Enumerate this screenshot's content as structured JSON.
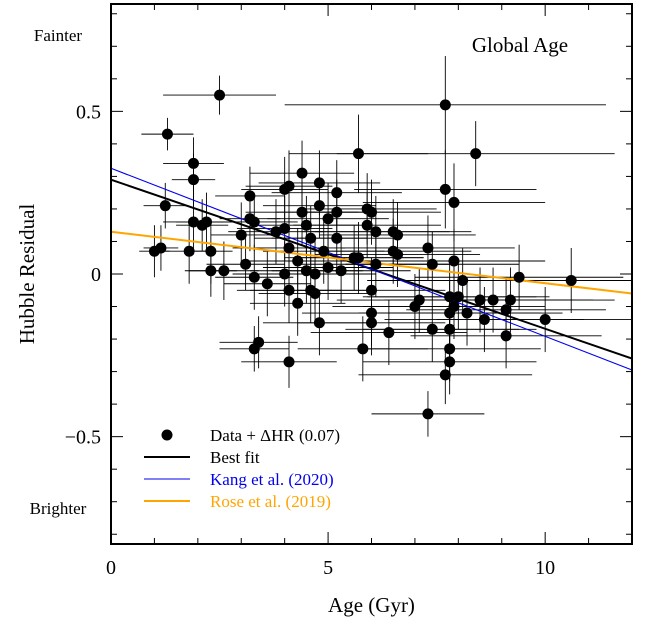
{
  "chart_data": {
    "type": "scatter",
    "title": "Global Age",
    "xlabel": "Age (Gyr)",
    "ylabel": "Hubble Residual",
    "xlim": [
      0,
      12
    ],
    "ylim": [
      -0.83,
      0.83
    ],
    "x_ticks": [
      0,
      5,
      10
    ],
    "x_tick_labels": [
      "0",
      "5",
      "10"
    ],
    "y_ticks": [
      0.5,
      0,
      -0.5
    ],
    "y_tick_labels": [
      "0.5",
      "0",
      "−0.5"
    ],
    "top_annotation": "Fainter",
    "bottom_annotation": "Brighter",
    "legend_position": "bottom-left",
    "grid": false,
    "legend": [
      {
        "label": "Data + ΔHR (0.07)",
        "marker": "dot",
        "color": "#000000"
      },
      {
        "label": "Best fit",
        "marker": "line",
        "color": "#000000"
      },
      {
        "label": "Kang et al. (2020)",
        "marker": "line",
        "color": "#0000ee"
      },
      {
        "label": "Rose et al. (2019)",
        "marker": "line",
        "color": "#ffa500"
      }
    ],
    "lines": [
      {
        "name": "Best fit",
        "color": "#000000",
        "x": [
          0,
          12
        ],
        "y": [
          0.29,
          -0.26
        ]
      },
      {
        "name": "Kang et al. (2020)",
        "color": "#0000ee",
        "x": [
          0,
          12
        ],
        "y": [
          0.325,
          -0.295
        ]
      },
      {
        "name": "Rose et al. (2019)",
        "color": "#ffa500",
        "x": [
          0,
          12
        ],
        "y": [
          0.13,
          -0.06
        ]
      }
    ],
    "points": [
      {
        "x": 1.0,
        "y": 0.07,
        "xerr": 0.35,
        "yerr": 0.08
      },
      {
        "x": 1.15,
        "y": 0.08,
        "xerr": 0.4,
        "yerr": 0.07
      },
      {
        "x": 1.25,
        "y": 0.21,
        "xerr": 0.5,
        "yerr": 0.07
      },
      {
        "x": 1.3,
        "y": 0.43,
        "xerr": 0.6,
        "yerr": 0.05
      },
      {
        "x": 1.8,
        "y": 0.07,
        "xerr": 0.6,
        "yerr": 0.1
      },
      {
        "x": 1.9,
        "y": 0.34,
        "xerr": 0.7,
        "yerr": 0.08
      },
      {
        "x": 1.9,
        "y": 0.29,
        "xerr": 0.5,
        "yerr": 0.08
      },
      {
        "x": 1.9,
        "y": 0.16,
        "xerr": 0.7,
        "yerr": 0.1
      },
      {
        "x": 2.1,
        "y": 0.15,
        "xerr": 0.6,
        "yerr": 0.08
      },
      {
        "x": 2.2,
        "y": 0.16,
        "xerr": 0.7,
        "yerr": 0.09
      },
      {
        "x": 2.3,
        "y": 0.07,
        "xerr": 0.5,
        "yerr": 0.1
      },
      {
        "x": 2.3,
        "y": 0.01,
        "xerr": 0.6,
        "yerr": 0.08
      },
      {
        "x": 2.5,
        "y": 0.55,
        "xerr": 1.3,
        "yerr": 0.06
      },
      {
        "x": 2.6,
        "y": 0.01,
        "xerr": 0.8,
        "yerr": 0.09
      },
      {
        "x": 3.0,
        "y": 0.12,
        "xerr": 0.7,
        "yerr": 0.1
      },
      {
        "x": 3.1,
        "y": 0.03,
        "xerr": 0.9,
        "yerr": 0.08
      },
      {
        "x": 3.2,
        "y": 0.24,
        "xerr": 0.8,
        "yerr": 0.09
      },
      {
        "x": 3.2,
        "y": 0.17,
        "xerr": 0.7,
        "yerr": 0.1
      },
      {
        "x": 3.3,
        "y": 0.16,
        "xerr": 1.0,
        "yerr": 0.09
      },
      {
        "x": 3.3,
        "y": -0.01,
        "xerr": 0.9,
        "yerr": 0.1
      },
      {
        "x": 3.3,
        "y": -0.23,
        "xerr": 0.8,
        "yerr": 0.07
      },
      {
        "x": 3.4,
        "y": -0.21,
        "xerr": 0.9,
        "yerr": 0.08
      },
      {
        "x": 3.6,
        "y": -0.03,
        "xerr": 1.0,
        "yerr": 0.1
      },
      {
        "x": 3.8,
        "y": 0.13,
        "xerr": 1.1,
        "yerr": 0.1
      },
      {
        "x": 4.0,
        "y": 0.26,
        "xerr": 1.0,
        "yerr": 0.1
      },
      {
        "x": 4.0,
        "y": 0.14,
        "xerr": 1.1,
        "yerr": 0.1
      },
      {
        "x": 4.0,
        "y": 0.0,
        "xerr": 1.2,
        "yerr": 0.1
      },
      {
        "x": 4.1,
        "y": 0.27,
        "xerr": 1.0,
        "yerr": 0.11
      },
      {
        "x": 4.1,
        "y": 0.08,
        "xerr": 1.3,
        "yerr": 0.1
      },
      {
        "x": 4.1,
        "y": -0.05,
        "xerr": 1.2,
        "yerr": 0.1
      },
      {
        "x": 4.1,
        "y": -0.27,
        "xerr": 1.1,
        "yerr": 0.08
      },
      {
        "x": 4.3,
        "y": 0.04,
        "xerr": 1.2,
        "yerr": 0.1
      },
      {
        "x": 4.3,
        "y": -0.09,
        "xerr": 1.1,
        "yerr": 0.1
      },
      {
        "x": 4.4,
        "y": 0.31,
        "xerr": 1.2,
        "yerr": 0.1
      },
      {
        "x": 4.4,
        "y": 0.19,
        "xerr": 1.3,
        "yerr": 0.1
      },
      {
        "x": 4.5,
        "y": 0.15,
        "xerr": 1.2,
        "yerr": 0.09
      },
      {
        "x": 4.5,
        "y": 0.01,
        "xerr": 1.3,
        "yerr": 0.1
      },
      {
        "x": 4.6,
        "y": 0.11,
        "xerr": 1.3,
        "yerr": 0.1
      },
      {
        "x": 4.6,
        "y": -0.05,
        "xerr": 1.4,
        "yerr": 0.1
      },
      {
        "x": 4.7,
        "y": 0.0,
        "xerr": 1.4,
        "yerr": 0.11
      },
      {
        "x": 4.7,
        "y": -0.06,
        "xerr": 1.3,
        "yerr": 0.1
      },
      {
        "x": 4.8,
        "y": 0.28,
        "xerr": 1.4,
        "yerr": 0.1
      },
      {
        "x": 4.8,
        "y": 0.21,
        "xerr": 1.3,
        "yerr": 0.1
      },
      {
        "x": 4.8,
        "y": -0.15,
        "xerr": 1.3,
        "yerr": 0.1
      },
      {
        "x": 4.9,
        "y": 0.07,
        "xerr": 1.4,
        "yerr": 0.1
      },
      {
        "x": 5.0,
        "y": 0.17,
        "xerr": 1.4,
        "yerr": 0.11
      },
      {
        "x": 5.0,
        "y": 0.02,
        "xerr": 1.5,
        "yerr": 0.1
      },
      {
        "x": 5.2,
        "y": 0.25,
        "xerr": 1.5,
        "yerr": 0.1
      },
      {
        "x": 5.2,
        "y": 0.19,
        "xerr": 1.4,
        "yerr": 0.1
      },
      {
        "x": 5.2,
        "y": 0.11,
        "xerr": 1.5,
        "yerr": 0.1
      },
      {
        "x": 5.3,
        "y": 0.01,
        "xerr": 1.6,
        "yerr": 0.1
      },
      {
        "x": 5.6,
        "y": 0.05,
        "xerr": 1.6,
        "yerr": 0.1
      },
      {
        "x": 5.7,
        "y": 0.05,
        "xerr": 1.5,
        "yerr": 0.11
      },
      {
        "x": 5.7,
        "y": 0.37,
        "xerr": 1.6,
        "yerr": 0.12
      },
      {
        "x": 5.8,
        "y": -0.23,
        "xerr": 1.5,
        "yerr": 0.1
      },
      {
        "x": 5.9,
        "y": 0.2,
        "xerr": 1.6,
        "yerr": 0.11
      },
      {
        "x": 5.9,
        "y": 0.15,
        "xerr": 1.7,
        "yerr": 0.1
      },
      {
        "x": 6.0,
        "y": 0.19,
        "xerr": 1.6,
        "yerr": 0.1
      },
      {
        "x": 6.0,
        "y": -0.05,
        "xerr": 1.7,
        "yerr": 0.1
      },
      {
        "x": 6.0,
        "y": -0.12,
        "xerr": 1.6,
        "yerr": 0.1
      },
      {
        "x": 6.0,
        "y": -0.15,
        "xerr": 1.7,
        "yerr": 0.1
      },
      {
        "x": 6.1,
        "y": 0.13,
        "xerr": 1.7,
        "yerr": 0.11
      },
      {
        "x": 6.1,
        "y": 0.03,
        "xerr": 1.8,
        "yerr": 0.1
      },
      {
        "x": 6.4,
        "y": -0.18,
        "xerr": 1.8,
        "yerr": 0.1
      },
      {
        "x": 6.5,
        "y": 0.13,
        "xerr": 1.8,
        "yerr": 0.1
      },
      {
        "x": 6.5,
        "y": 0.07,
        "xerr": 1.8,
        "yerr": 0.1
      },
      {
        "x": 6.6,
        "y": 0.12,
        "xerr": 1.8,
        "yerr": 0.1
      },
      {
        "x": 6.6,
        "y": 0.06,
        "xerr": 1.9,
        "yerr": 0.1
      },
      {
        "x": 7.0,
        "y": -0.1,
        "xerr": 1.9,
        "yerr": 0.1
      },
      {
        "x": 7.1,
        "y": -0.08,
        "xerr": 1.9,
        "yerr": 0.1
      },
      {
        "x": 7.3,
        "y": 0.08,
        "xerr": 2.0,
        "yerr": 0.1
      },
      {
        "x": 7.3,
        "y": -0.43,
        "xerr": 1.3,
        "yerr": 0.07
      },
      {
        "x": 7.4,
        "y": 0.03,
        "xerr": 2.0,
        "yerr": 0.1
      },
      {
        "x": 7.4,
        "y": -0.17,
        "xerr": 2.0,
        "yerr": 0.1
      },
      {
        "x": 7.7,
        "y": 0.52,
        "xerr": 3.7,
        "yerr": 0.15
      },
      {
        "x": 7.7,
        "y": 0.26,
        "xerr": 2.1,
        "yerr": 0.12
      },
      {
        "x": 7.7,
        "y": -0.31,
        "xerr": 2.0,
        "yerr": 0.09
      },
      {
        "x": 7.8,
        "y": -0.07,
        "xerr": 2.0,
        "yerr": 0.1
      },
      {
        "x": 7.8,
        "y": -0.12,
        "xerr": 2.1,
        "yerr": 0.1
      },
      {
        "x": 7.8,
        "y": -0.17,
        "xerr": 2.0,
        "yerr": 0.1
      },
      {
        "x": 7.8,
        "y": -0.23,
        "xerr": 2.1,
        "yerr": 0.1
      },
      {
        "x": 7.8,
        "y": -0.27,
        "xerr": 2.0,
        "yerr": 0.1
      },
      {
        "x": 7.9,
        "y": 0.22,
        "xerr": 2.1,
        "yerr": 0.12
      },
      {
        "x": 7.9,
        "y": 0.04,
        "xerr": 2.1,
        "yerr": 0.1
      },
      {
        "x": 7.9,
        "y": -0.1,
        "xerr": 2.1,
        "yerr": 0.1
      },
      {
        "x": 8.0,
        "y": -0.07,
        "xerr": 2.1,
        "yerr": 0.1
      },
      {
        "x": 8.1,
        "y": -0.02,
        "xerr": 2.2,
        "yerr": 0.1
      },
      {
        "x": 8.2,
        "y": -0.12,
        "xerr": 2.2,
        "yerr": 0.1
      },
      {
        "x": 8.4,
        "y": 0.37,
        "xerr": 3.2,
        "yerr": 0.1
      },
      {
        "x": 8.5,
        "y": -0.08,
        "xerr": 2.2,
        "yerr": 0.1
      },
      {
        "x": 8.6,
        "y": -0.14,
        "xerr": 2.3,
        "yerr": 0.1
      },
      {
        "x": 8.8,
        "y": -0.08,
        "xerr": 2.3,
        "yerr": 0.1
      },
      {
        "x": 9.1,
        "y": -0.11,
        "xerr": 2.3,
        "yerr": 0.1
      },
      {
        "x": 9.1,
        "y": -0.19,
        "xerr": 2.2,
        "yerr": 0.1
      },
      {
        "x": 9.2,
        "y": -0.08,
        "xerr": 2.4,
        "yerr": 0.1
      },
      {
        "x": 9.4,
        "y": -0.01,
        "xerr": 2.4,
        "yerr": 0.1
      },
      {
        "x": 10.0,
        "y": -0.14,
        "xerr": 2.5,
        "yerr": 0.1
      },
      {
        "x": 10.6,
        "y": -0.02,
        "xerr": 2.6,
        "yerr": 0.1
      }
    ]
  }
}
